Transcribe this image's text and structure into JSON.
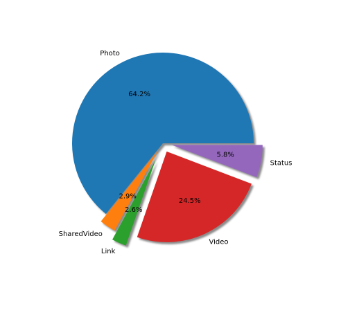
{
  "chart_data": {
    "type": "pie",
    "title": "",
    "startangle_deg": 0,
    "direction": "counterclockwise",
    "shadow": true,
    "slices": [
      {
        "label": "Photo",
        "value": 64.2,
        "pct_label": "64.2%",
        "color": "#1f77b4",
        "explode": 0.0
      },
      {
        "label": "SharedVideo",
        "value": 2.9,
        "pct_label": "2.9%",
        "color": "#ff7f0e",
        "explode": 0.1
      },
      {
        "label": "Link",
        "value": 2.6,
        "pct_label": "2.6%",
        "color": "#2ca02c",
        "explode": 0.2
      },
      {
        "label": "Video",
        "value": 24.5,
        "pct_label": "24.5%",
        "color": "#d62728",
        "explode": 0.1
      },
      {
        "label": "Status",
        "value": 5.8,
        "pct_label": "5.8%",
        "color": "#9467bd",
        "explode": 0.1
      }
    ]
  }
}
